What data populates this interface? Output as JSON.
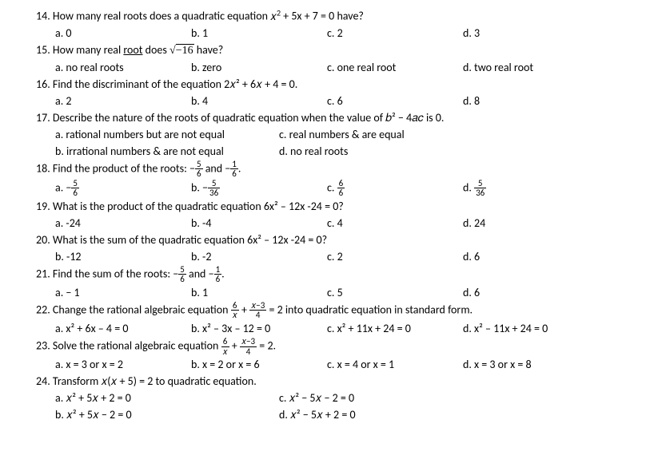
{
  "q14": {
    "num": "14.",
    "stem_a": "How many real roots does a quadratic equation ",
    "stem_b": " + 5x + 7 = 0 have?",
    "a": "a.   0",
    "b": "b. 1",
    "c": "c. 2",
    "d": "d. 3"
  },
  "q15": {
    "num": "15.",
    "stem_a": "How many real ",
    "stem_u": "root",
    "stem_b": " does ",
    "root": "−16",
    "stem_c": " have?",
    "a": "a.   no real roots",
    "b": "b. zero",
    "c": "c. one real root",
    "d": "d. two real root"
  },
  "q16": {
    "num": "16.",
    "stem": "Find the discriminant of the equation 2𝑥² + 6𝑥 + 4 = 0.",
    "a": "a.   2",
    "b": "b. 4",
    "c": "c. 6",
    "d": "d. 8"
  },
  "q17": {
    "num": "17.",
    "stem": "Describe the nature of the roots of quadratic equation when the value of 𝑏² − 4𝑎𝑐 is 0.",
    "a": "a. rational numbers but are not equal",
    "c": "c. real numbers & are equal",
    "b": "b. irrational numbers & are not equal",
    "d": "d. no real roots"
  },
  "q18": {
    "num": "18.",
    "stem_a": "Find the product of the roots:  −",
    "f1n": "5",
    "f1d": "6",
    "stem_b": " and −",
    "f2n": "1",
    "f2d": "6",
    "stem_c": ".",
    "a": "a.  −",
    "an": "5",
    "ad": "6",
    "b": "b. −",
    "bn": "5",
    "bd": "36",
    "c": "c. ",
    "cn": "6",
    "cd": "6",
    "d": "d. ",
    "dn": "5",
    "dd": "36"
  },
  "q19": {
    "num": "19.",
    "stem": "What is the product of the quadratic equation 6x² – 12x -24 = 0?",
    "a": "a.   -24",
    "b": "b. -4",
    "c": "c. 4",
    "d": "d. 24"
  },
  "q20": {
    "num": "20.",
    "stem": "What is the sum of the quadratic equation 6x² – 12x -24 = 0?",
    "a": "b.   -12",
    "b": "b. -2",
    "c": "c. 2",
    "d": "d. 6"
  },
  "q21": {
    "num": "21.",
    "stem_a": "Find the sum of the roots:  −",
    "f1n": "5",
    "f1d": "6",
    "stem_b": " and −",
    "f2n": "1",
    "f2d": "6",
    "stem_c": ".",
    "a": "a.  − 1",
    "b": "b. 1",
    "c": "c. 5",
    "d": "d. 6"
  },
  "q22": {
    "num": "22.",
    "stem_a": "Change the rational algebraic equation ",
    "f1n": "6",
    "f1d": "𝑥",
    "stem_b": " + ",
    "f2n": "𝑥−3",
    "f2d": "4",
    "stem_c": " = 2 into quadratic equation in standard form.",
    "a": "a.   x² + 6x – 4 = 0",
    "b": "b. x² – 3x – 12 = 0",
    "c": "c. x² + 11x + 24 = 0",
    "d": "d. x² – 11x + 24 = 0"
  },
  "q23": {
    "num": "23.",
    "stem_a": "Solve the rational algebraic equation ",
    "f1n": "6",
    "f1d": "𝑥",
    "stem_b": " + ",
    "f2n": "𝑥−3",
    "f2d": "4",
    "stem_c": " = 2.",
    "a": "a.   x = 3 or x = 2",
    "b": "b. x = 2 or x = 6",
    "c": "c. x = 4 or x = 1",
    "d": "d. x = 3 or x = 8"
  },
  "q24": {
    "num": "24.",
    "stem": "Transform 𝑥(𝑥 + 5) = 2 to quadratic equation.",
    "a": "a.   𝑥² + 5𝑥 + 2 =  0",
    "c": "c. 𝑥² − 5𝑥 − 2 =  0",
    "b": "b.   𝑥² + 5𝑥 − 2 =  0",
    "d": "d. 𝑥² − 5𝑥 + 2 =  0"
  }
}
